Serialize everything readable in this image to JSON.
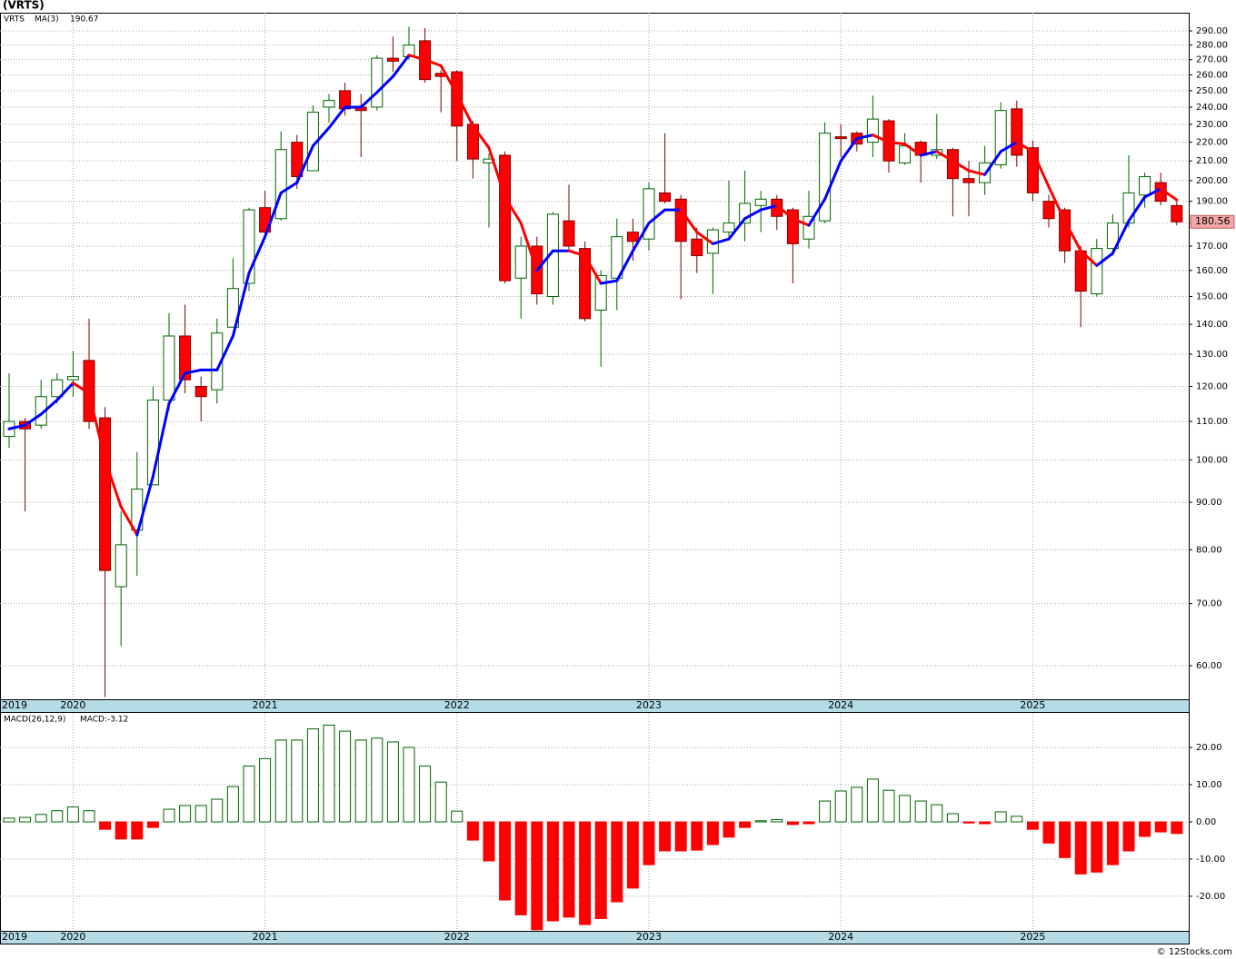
{
  "title": "(VRTS)",
  "footer": "© 12Stocks.com",
  "chart_data": [
    {
      "type": "candlestick",
      "name": "VRTS",
      "color": "#006400",
      "down_color": "#ff0000",
      "categories": [
        "2019",
        null,
        null,
        null,
        "2020",
        null,
        null,
        null,
        null,
        null,
        null,
        null,
        null,
        null,
        null,
        null,
        "2021",
        null,
        null,
        null,
        null,
        null,
        null,
        null,
        null,
        null,
        null,
        null,
        "2022",
        null,
        null,
        null,
        null,
        null,
        null,
        null,
        null,
        null,
        null,
        null,
        "2023",
        null,
        null,
        null,
        null,
        null,
        null,
        null,
        null,
        null,
        null,
        null,
        "2024",
        null,
        null,
        null,
        null,
        null,
        null,
        null,
        null,
        null,
        null,
        null,
        "2025",
        null,
        null,
        null,
        null,
        null,
        null,
        null,
        null,
        null
      ],
      "open": [
        106,
        110,
        109,
        117,
        122,
        128,
        111,
        73,
        84,
        94,
        116,
        136,
        120,
        119,
        139,
        155,
        187,
        182,
        220,
        205,
        240,
        250,
        240,
        240,
        271,
        272,
        283,
        261,
        262,
        230,
        209,
        213,
        157,
        170,
        150,
        181,
        169,
        145,
        157,
        176,
        173,
        194,
        191,
        173,
        167,
        176,
        180,
        188,
        191,
        186,
        173,
        181,
        223,
        225,
        220,
        232,
        209,
        220,
        213,
        216,
        201,
        199,
        208,
        239,
        217,
        190,
        186,
        168,
        151,
        169,
        180,
        193,
        199,
        188
      ],
      "high": [
        124,
        111,
        122,
        124,
        131,
        142,
        114,
        88,
        102,
        120,
        144,
        147,
        123,
        142,
        165,
        187,
        195,
        226,
        224,
        241,
        248,
        255,
        248,
        273,
        286,
        293,
        292,
        263,
        263,
        232,
        214,
        215,
        174,
        174,
        185,
        198,
        172,
        160,
        182,
        182,
        199,
        225,
        193,
        178,
        178,
        200,
        205,
        195,
        193,
        187,
        195,
        231,
        230,
        226,
        247,
        233,
        225,
        221,
        236,
        217,
        210,
        218,
        243,
        244,
        221,
        193,
        187,
        170,
        173,
        184,
        213,
        204,
        204,
        190
      ],
      "low": [
        103,
        88,
        108,
        115,
        117,
        108,
        55.5,
        63,
        75,
        94,
        113,
        118,
        110,
        115,
        139,
        152,
        175,
        181,
        196,
        205,
        231,
        235,
        212,
        238,
        262,
        270,
        255,
        237,
        210,
        201,
        178,
        155,
        142,
        147,
        147,
        168,
        141,
        126,
        145,
        164,
        168,
        189,
        149,
        159,
        151,
        173,
        172,
        176,
        177,
        155,
        169,
        180,
        212,
        215,
        212,
        204,
        208,
        199,
        211,
        183,
        183,
        193,
        206,
        207,
        190,
        178,
        163,
        139,
        150,
        166,
        178,
        187,
        188,
        179
      ],
      "close": [
        110,
        108,
        117,
        122,
        123,
        110,
        76,
        81,
        93,
        116,
        136,
        122,
        117,
        137,
        153,
        186,
        176,
        216,
        202,
        237,
        244,
        239,
        238,
        271,
        269,
        280,
        257,
        259,
        229,
        211,
        211,
        156,
        170,
        151,
        184,
        170,
        142,
        158,
        174,
        172,
        196,
        190,
        172,
        166,
        177,
        180,
        189,
        191,
        183,
        171,
        183,
        225,
        222,
        219,
        233,
        210,
        218,
        213,
        216,
        201,
        199,
        209,
        238,
        213,
        194,
        182,
        168,
        152,
        169,
        180,
        194,
        202,
        190,
        180.56
      ],
      "ma": {
        "name": "MA(3)",
        "color": "#0000ff",
        "down_color": "#ff0000",
        "values": [
          108,
          109,
          112,
          116,
          121,
          118,
          100,
          89,
          83,
          96,
          115,
          124,
          125,
          125,
          136,
          159,
          174,
          194,
          199,
          218,
          228,
          240,
          240,
          249,
          259,
          273,
          270,
          266,
          248,
          229,
          217,
          192,
          180,
          160,
          168,
          168,
          166,
          155,
          156,
          168,
          180,
          186,
          186,
          176,
          171,
          173,
          182,
          186,
          188,
          182,
          179,
          191,
          210,
          222,
          224,
          220,
          219,
          213,
          215,
          210,
          205,
          203,
          215,
          220,
          215,
          197,
          181,
          168,
          162,
          167,
          181,
          192,
          196,
          190.67
        ]
      },
      "log_scale": true,
      "ylim": [
        55.2,
        303.4
      ],
      "grid": true,
      "yticks": [
        {
          "value": 60,
          "label": "60.00"
        },
        {
          "value": 70,
          "label": "70.00"
        },
        {
          "value": 80,
          "label": "80.00"
        },
        {
          "value": 90,
          "label": "90.00"
        },
        {
          "value": 100,
          "label": "100.00"
        },
        {
          "value": 110,
          "label": "110.00"
        },
        {
          "value": 120,
          "label": "120.00"
        },
        {
          "value": 130,
          "label": "130.00"
        },
        {
          "value": 140,
          "label": "140.00"
        },
        {
          "value": 150,
          "label": "150.00"
        },
        {
          "value": 160,
          "label": "160.00"
        },
        {
          "value": 170,
          "label": "170.00"
        },
        {
          "value": 180,
          "label": "180.00"
        },
        {
          "value": 190,
          "label": "190.00"
        },
        {
          "value": 200,
          "label": "200.00"
        },
        {
          "value": 210,
          "label": "210.00"
        },
        {
          "value": 220,
          "label": "220.00"
        },
        {
          "value": 230,
          "label": "230.00"
        },
        {
          "value": 240,
          "label": "240.00"
        },
        {
          "value": 250,
          "label": "250.00"
        },
        {
          "value": 260,
          "label": "260.00"
        },
        {
          "value": 270,
          "label": "270.00"
        },
        {
          "value": 280,
          "label": "280.00"
        },
        {
          "value": 290,
          "label": "290.00"
        }
      ]
    },
    {
      "type": "bar",
      "name": "MACD(26,12,9)",
      "annotation": "MACD:-3.12",
      "color": "#006400",
      "down_color": "#ff0000",
      "values": [
        1.0,
        1.2,
        2,
        3,
        4,
        3,
        -2,
        -4.6,
        -4.6,
        -1.5,
        3.4,
        4.4,
        4.4,
        6.1,
        9.5,
        15,
        17,
        22,
        22,
        25,
        26,
        24.4,
        22,
        22.5,
        21.5,
        20,
        15,
        10.7,
        2.9,
        -4.9,
        -10.5,
        -21,
        -25,
        -29,
        -26.6,
        -25.6,
        -27.6,
        -26,
        -21.5,
        -17.8,
        -11.5,
        -7.8,
        -7.8,
        -7.6,
        -6.1,
        -4.1,
        -1.5,
        0.3,
        0.6,
        -0.7,
        -0.5,
        5.6,
        8.3,
        9.3,
        11.5,
        8.5,
        7.1,
        5.6,
        4.6,
        2.2,
        -0.3,
        -0.5,
        2.7,
        1.5,
        -2,
        -5.7,
        -9.6,
        -14,
        -13.5,
        -11.5,
        -7.8,
        -3.9,
        -2.7,
        -3.12
      ],
      "ylim": [
        -29.3,
        29.3
      ],
      "grid": true,
      "yticks": [
        {
          "value": -20,
          "label": "-20.00"
        },
        {
          "value": -10,
          "label": "-10.00"
        },
        {
          "value": 0,
          "label": "0.00"
        },
        {
          "value": 10,
          "label": "10.00"
        },
        {
          "value": 20,
          "label": "20.00"
        }
      ]
    }
  ]
}
